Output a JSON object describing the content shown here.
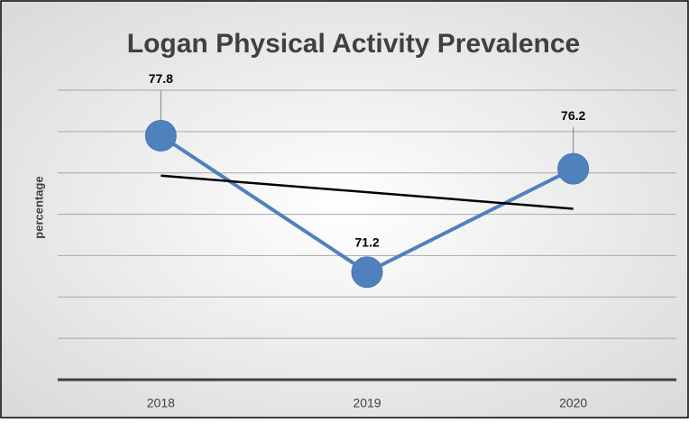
{
  "chart_data": {
    "type": "line",
    "title": "Logan Physical Activity Prevalence",
    "y_axis_label": "percentage",
    "categories": [
      "2018",
      "2019",
      "2020"
    ],
    "series": [
      {
        "name": "percentage",
        "color": "#4f81bd",
        "values": [
          77.8,
          71.2,
          76.2
        ]
      }
    ],
    "ylim": [
      66,
      80
    ],
    "yticks": [
      66,
      68,
      70,
      72,
      74,
      76,
      78,
      80
    ],
    "grid": true,
    "trendline": true,
    "trendline_color": "#000000"
  }
}
